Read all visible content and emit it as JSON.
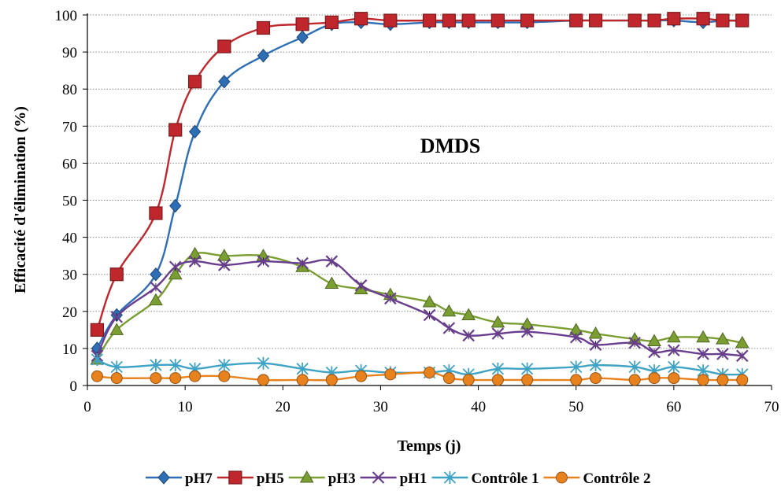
{
  "chart_data": {
    "type": "line",
    "title": "",
    "annotation": "DMDS",
    "xlabel": "Temps (j)",
    "ylabel": "Efficacité d'élimination (%)",
    "xlim": [
      0,
      70
    ],
    "ylim": [
      0,
      100
    ],
    "xticks": [
      0,
      10,
      20,
      30,
      40,
      50,
      60,
      70
    ],
    "yticks": [
      0,
      10,
      20,
      30,
      40,
      50,
      60,
      70,
      80,
      90,
      100
    ],
    "grid": "horizontal dotted",
    "legend_position": "bottom",
    "series": [
      {
        "name": "pH7",
        "color": "#2e6eb5",
        "marker": "diamond",
        "x": [
          1,
          3,
          7,
          9,
          11,
          14,
          18,
          22,
          25,
          28,
          31,
          35,
          37,
          39,
          42,
          45,
          50,
          52,
          56,
          58,
          60,
          63,
          65,
          67
        ],
        "y": [
          10,
          19,
          30,
          48.5,
          68.5,
          82,
          89,
          94,
          97.5,
          98,
          97.5,
          98,
          98,
          98,
          98,
          98,
          98.5,
          98.5,
          98.5,
          98.5,
          98.5,
          98,
          98.5,
          98.5
        ]
      },
      {
        "name": "pH5",
        "color": "#c0272d",
        "marker": "square",
        "x": [
          1,
          3,
          7,
          9,
          11,
          14,
          18,
          22,
          25,
          28,
          31,
          35,
          37,
          39,
          42,
          45,
          50,
          52,
          56,
          58,
          60,
          63,
          65,
          67
        ],
        "y": [
          15,
          30,
          46.5,
          69,
          82,
          91.5,
          96.5,
          97.5,
          98,
          99,
          98.5,
          98.5,
          98.5,
          98.5,
          98.5,
          98.5,
          98.5,
          98.5,
          98.5,
          98.5,
          99,
          99,
          98.5,
          98.5
        ]
      },
      {
        "name": "pH3",
        "color": "#7a9e32",
        "marker": "triangle",
        "x": [
          1,
          3,
          7,
          9,
          11,
          14,
          18,
          22,
          25,
          28,
          31,
          35,
          37,
          39,
          42,
          45,
          50,
          52,
          56,
          58,
          60,
          63,
          65,
          67
        ],
        "y": [
          7,
          15,
          23,
          30,
          35.5,
          35,
          35,
          32,
          27.5,
          26,
          24.5,
          22.5,
          20,
          19,
          17,
          16.5,
          15,
          14,
          12.5,
          12,
          13,
          13,
          12.5,
          11.5
        ]
      },
      {
        "name": "pH1",
        "color": "#6a3e8e",
        "marker": "x",
        "x": [
          1,
          3,
          7,
          9,
          11,
          14,
          18,
          22,
          25,
          28,
          31,
          35,
          37,
          39,
          42,
          45,
          50,
          52,
          56,
          58,
          60,
          63,
          65,
          67
        ],
        "y": [
          8,
          18.5,
          26.5,
          32,
          33.5,
          32.5,
          33.5,
          33,
          33.5,
          27,
          23.5,
          19,
          15.5,
          13.5,
          14,
          14.5,
          13,
          11,
          11.5,
          9,
          9.5,
          8.5,
          8.5,
          8
        ]
      },
      {
        "name": "Contrôle 1",
        "color": "#3ea3c4",
        "marker": "asterisk",
        "x": [
          1,
          3,
          7,
          9,
          11,
          14,
          18,
          22,
          25,
          28,
          31,
          35,
          37,
          39,
          42,
          45,
          50,
          52,
          56,
          58,
          60,
          63,
          65,
          67
        ],
        "y": [
          7,
          5,
          5.5,
          5.5,
          4.5,
          5.5,
          6,
          4.5,
          3.5,
          4,
          3.5,
          3.5,
          4,
          3,
          4.5,
          4.5,
          5,
          5.5,
          5,
          4,
          5,
          4,
          3,
          3
        ]
      },
      {
        "name": "Contrôle 2",
        "color": "#e8821e",
        "marker": "circle",
        "x": [
          1,
          3,
          7,
          9,
          11,
          14,
          18,
          22,
          25,
          28,
          31,
          35,
          37,
          39,
          42,
          45,
          50,
          52,
          56,
          58,
          60,
          63,
          65,
          67
        ],
        "y": [
          2.5,
          2,
          2,
          2,
          2.5,
          2.5,
          1.5,
          1.5,
          1.5,
          2.5,
          3,
          3.5,
          2,
          1.5,
          1.5,
          1.5,
          1.5,
          2,
          1.5,
          2,
          2,
          1.5,
          1.5,
          1.5
        ]
      }
    ]
  }
}
